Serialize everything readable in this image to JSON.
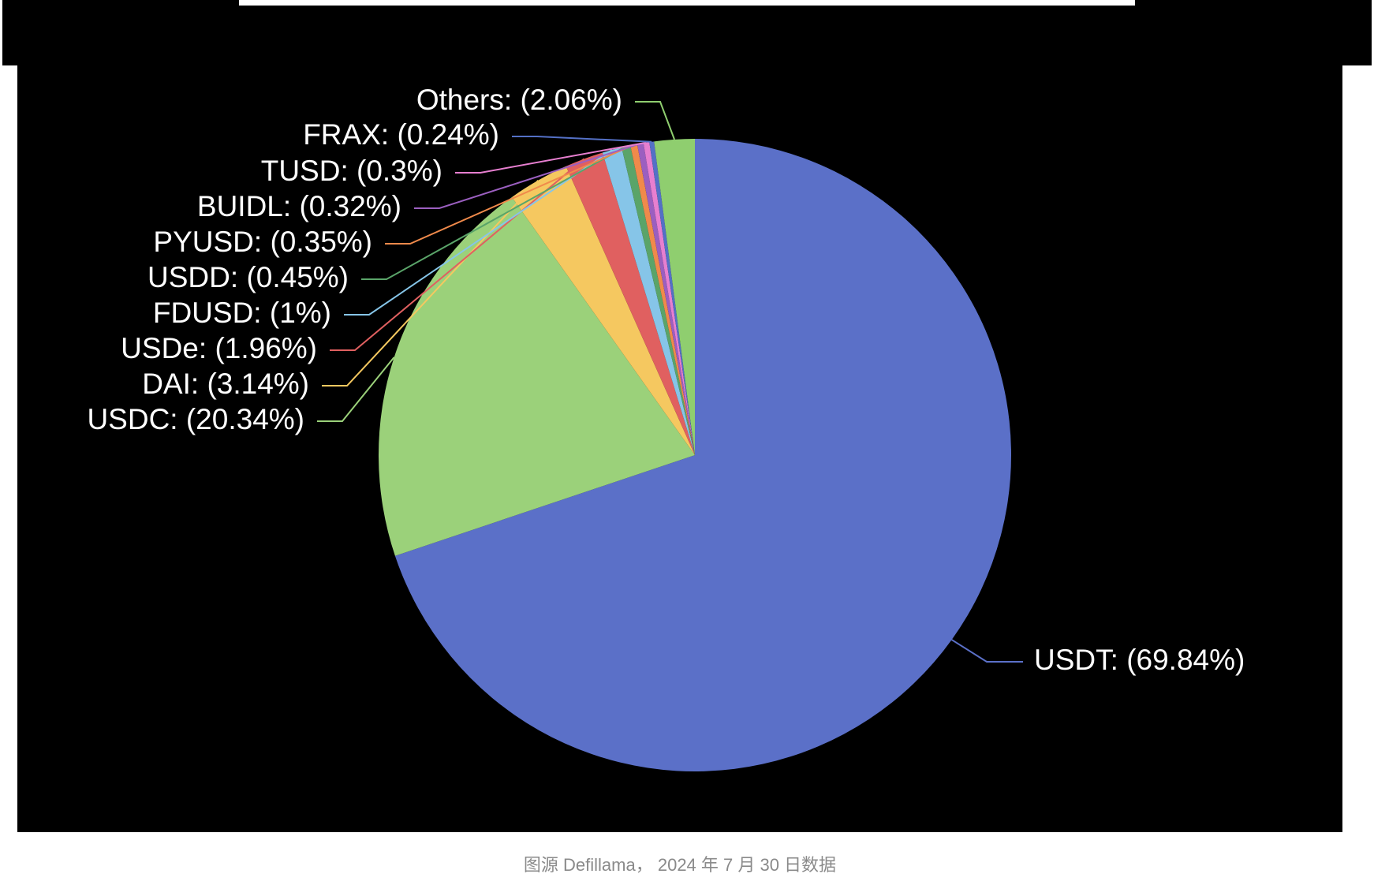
{
  "chart_data": {
    "type": "pie",
    "categories": [
      "USDT:",
      "USDC:",
      "DAI:",
      "USDe:",
      "FDUSD:",
      "USDD:",
      "PYUSD:",
      "BUIDL:",
      "TUSD:",
      "FRAX:",
      "Others:"
    ],
    "values": [
      69.84,
      20.34,
      3.14,
      1.96,
      1,
      0.45,
      0.35,
      0.32,
      0.3,
      0.24,
      2.06
    ],
    "value_labels": [
      "(69.84%)",
      "(20.34%)",
      "(3.14%)",
      "(1.96%)",
      "(1%)",
      "(0.45%)",
      "(0.35%)",
      "(0.32%)",
      "(0.3%)",
      "(0.24%)",
      "(2.06%)"
    ],
    "colors": [
      "#5b70c8",
      "#9bd17a",
      "#f5c860",
      "#e06060",
      "#86c5e8",
      "#5aa469",
      "#f08a4b",
      "#9b5fc0",
      "#e77fd0",
      "#5470c6",
      "#8fce6f"
    ],
    "caption": "图源 Defillama， 2024 年 7 月 30 日数据"
  }
}
